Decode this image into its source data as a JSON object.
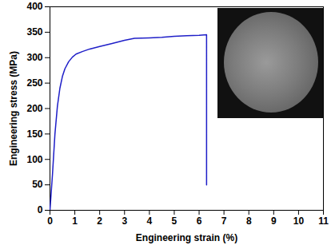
{
  "chart_data": {
    "type": "line",
    "x": [
      0,
      0.1,
      0.2,
      0.3,
      0.4,
      0.5,
      0.6,
      0.75,
      0.9,
      1.05,
      1.3,
      1.6,
      2.0,
      2.5,
      3.0,
      3.4,
      4.0,
      4.5,
      5.0,
      5.5,
      6.0,
      6.3,
      6.3
    ],
    "values": [
      0,
      70,
      150,
      205,
      240,
      263,
      278,
      292,
      301,
      307,
      312,
      317,
      322,
      328,
      334,
      338,
      339,
      340,
      342,
      343,
      344,
      345,
      50
    ],
    "color": "#1f1fc8",
    "xlabel": "Engineering strain (%)",
    "ylabel": "Engineering stress (MPa)",
    "xlim": [
      0,
      11
    ],
    "ylim": [
      0,
      400
    ],
    "xticks": [
      0,
      1,
      2,
      3,
      4,
      5,
      6,
      7,
      8,
      9,
      10,
      11
    ],
    "yticks": [
      0,
      50,
      100,
      150,
      200,
      250,
      300,
      350,
      400
    ],
    "grid": false
  }
}
